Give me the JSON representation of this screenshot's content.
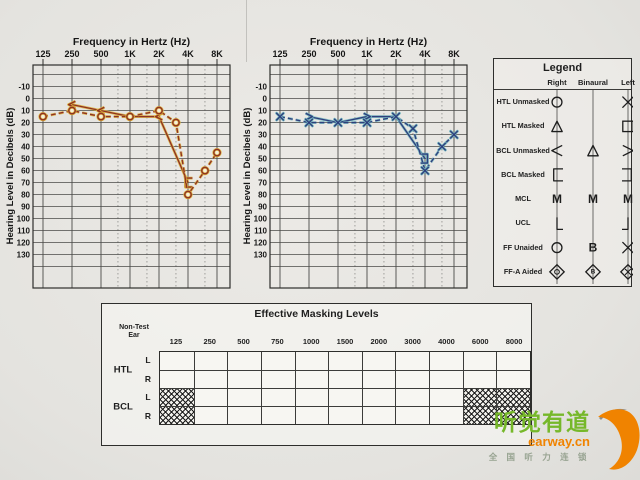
{
  "page": {
    "background": "#e6e5e1",
    "type": "scanned audiogram report"
  },
  "chart_data": [
    {
      "type": "line",
      "name": "right-ear-audiogram",
      "title": "Frequency in Hertz (Hz)",
      "ylabel": "Hearing Level in Decibels (dB)",
      "x_ticks": [
        "125",
        "250",
        "500",
        "1K",
        "2K",
        "4K",
        "8K"
      ],
      "x_ticks_hz": [
        125,
        250,
        500,
        1000,
        2000,
        4000,
        8000
      ],
      "ylim": [
        -10,
        130
      ],
      "y_step": 10,
      "y_inverted": true,
      "grid": true,
      "color": "#8f3124",
      "halo": "#dcb23a",
      "series": [
        {
          "name": "HTL unmasked right (circle)",
          "symbol": "circle",
          "line": "dashed",
          "points": [
            [
              125,
              15
            ],
            [
              250,
              10
            ],
            [
              500,
              15
            ],
            [
              1000,
              15
            ],
            [
              2000,
              10
            ],
            [
              3000,
              20
            ],
            [
              4000,
              80
            ],
            [
              6000,
              60
            ],
            [
              8000,
              45
            ]
          ]
        },
        {
          "name": "BCL right (< / bracket)",
          "symbol": "lt",
          "line": "solid",
          "points": [
            [
              250,
              5,
              "lt"
            ],
            [
              500,
              10,
              "lt"
            ],
            [
              1000,
              15,
              "none"
            ],
            [
              2000,
              15,
              "lt"
            ],
            [
              4000,
              70,
              "bracket-left"
            ]
          ]
        }
      ]
    },
    {
      "type": "line",
      "name": "left-ear-audiogram",
      "title": "Frequency in Hertz (Hz)",
      "ylabel": "Hearing Level in Decibels (dB)",
      "x_ticks": [
        "125",
        "250",
        "500",
        "1K",
        "2K",
        "4K",
        "8K"
      ],
      "x_ticks_hz": [
        125,
        250,
        500,
        1000,
        2000,
        4000,
        8000
      ],
      "ylim": [
        -10,
        130
      ],
      "y_step": 10,
      "y_inverted": true,
      "grid": true,
      "color": "#2f3e7c",
      "halo": "#74b7c0",
      "series": [
        {
          "name": "HTL unmasked left (X)",
          "symbol": "x",
          "line": "dashed",
          "points": [
            [
              125,
              15
            ],
            [
              250,
              20
            ],
            [
              500,
              20
            ],
            [
              1000,
              20
            ],
            [
              2000,
              15
            ],
            [
              3000,
              25
            ],
            [
              4000,
              60
            ],
            [
              6000,
              40
            ],
            [
              8000,
              30
            ]
          ]
        },
        {
          "name": "BCL left (> / bracket)",
          "symbol": "gt",
          "line": "solid",
          "points": [
            [
              250,
              15,
              "gt"
            ],
            [
              500,
              20,
              "none"
            ],
            [
              1000,
              15,
              "gt"
            ],
            [
              2000,
              15,
              "none"
            ],
            [
              4000,
              50,
              "bracket-right"
            ]
          ]
        }
      ]
    }
  ],
  "legend": {
    "title": "Legend",
    "columns": [
      "Right",
      "Binaural",
      "Left"
    ],
    "rows": [
      {
        "label": "HTL Unmasked",
        "right": "circle",
        "binaural": "none",
        "left": "x"
      },
      {
        "label": "HTL Masked",
        "right": "triangle",
        "binaural": "none",
        "left": "square"
      },
      {
        "label": "BCL Unmasked",
        "right": "lt",
        "binaural": "triangle",
        "left": "gt"
      },
      {
        "label": "BCL Masked",
        "right": "bracket-left",
        "binaural": "none",
        "left": "bracket-right"
      },
      {
        "label": "MCL",
        "right": "M",
        "binaural": "M",
        "left": "M"
      },
      {
        "label": "UCL",
        "right": "corner-right",
        "binaural": "none",
        "left": "corner-left"
      },
      {
        "label": "FF Unaided",
        "right": "circle",
        "binaural": "B",
        "left": "x"
      },
      {
        "label": "FF-A Aided",
        "right": "diamond-circle",
        "binaural": "diamond-B",
        "left": "diamond-x"
      }
    ]
  },
  "masking_table": {
    "title": "Effective Masking Levels",
    "corner_label_line1": "Non-Test",
    "corner_label_line2": "Ear",
    "frequencies": [
      "125",
      "250",
      "500",
      "750",
      "1000",
      "1500",
      "2000",
      "3000",
      "4000",
      "6000",
      "8000"
    ],
    "row_groups": [
      {
        "label": "HTL",
        "rows": [
          "L",
          "R"
        ]
      },
      {
        "label": "BCL",
        "rows": [
          "L",
          "R"
        ]
      }
    ],
    "hatched": [
      {
        "freq": "125",
        "rows": [
          "BCL-L",
          "BCL-R"
        ]
      },
      {
        "freq": "6000",
        "rows": [
          "BCL-L",
          "BCL-R"
        ]
      },
      {
        "freq": "8000",
        "rows": [
          "BCL-L",
          "BCL-R"
        ]
      }
    ]
  },
  "logo": {
    "name_cn": "听觉有道",
    "domain": "earway.cn",
    "tagline_cn": "全 国 听 力 连 锁",
    "green": "#76b82a",
    "orange": "#f08300"
  }
}
